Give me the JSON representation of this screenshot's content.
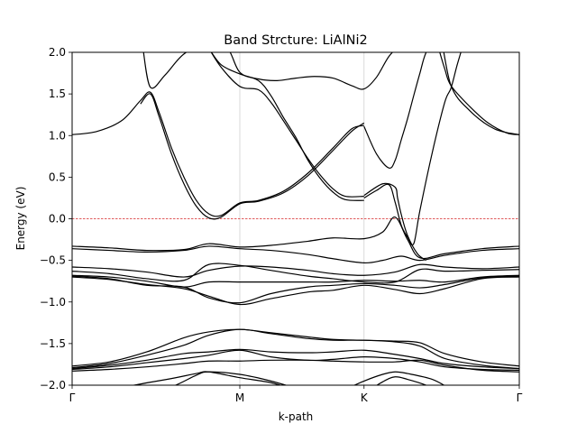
{
  "chart_data": {
    "type": "line",
    "title": "Band Strcture: LiAlNi2",
    "xlabel": "k-path",
    "ylabel": "Energy (eV)",
    "ylim": [
      -2.0,
      2.0
    ],
    "xlim": [
      0,
      3.6
    ],
    "y_ticks": [
      -2.0,
      -1.5,
      -1.0,
      -0.5,
      0.0,
      0.5,
      1.0,
      1.5,
      2.0
    ],
    "y_tick_labels": [
      "−2.0",
      "−1.5",
      "−1.0",
      "−0.5",
      "0.0",
      "0.5",
      "1.0",
      "1.5",
      "2.0"
    ],
    "k_points": [
      {
        "label": "Γ",
        "x": 0.0
      },
      {
        "label": "M",
        "x": 1.35
      },
      {
        "label": "K",
        "x": 2.35
      },
      {
        "label": "Γ",
        "x": 3.6
      }
    ],
    "vertical_gridlines_at": [
      1.35,
      2.35
    ],
    "fermi_level": {
      "energy": 0.0,
      "color": "#d62728",
      "style": "dashed"
    },
    "line_color": "#000000",
    "bands": [
      {
        "x": [
          0.0,
          0.2,
          0.4,
          0.55,
          0.63,
          0.7,
          0.8,
          0.9,
          1.0,
          1.1,
          1.2,
          1.35,
          1.5,
          1.7,
          1.9,
          2.1,
          2.25,
          2.35
        ],
        "y": [
          1.01,
          1.05,
          1.18,
          1.42,
          1.52,
          1.28,
          0.85,
          0.5,
          0.22,
          0.06,
          0.04,
          0.19,
          0.22,
          0.33,
          0.55,
          0.85,
          1.08,
          1.12
        ]
      },
      {
        "x": [
          0.55,
          0.63,
          0.7,
          0.8,
          0.9,
          1.0,
          1.1,
          1.2,
          1.35,
          1.5,
          1.7,
          1.9,
          2.1,
          2.25,
          2.35
        ],
        "y": [
          1.38,
          1.5,
          1.23,
          0.78,
          0.42,
          0.15,
          0.01,
          0.02,
          0.18,
          0.21,
          0.31,
          0.52,
          0.82,
          1.05,
          1.15
        ]
      },
      {
        "x": [
          0.57,
          0.63,
          0.75,
          0.9,
          1.1,
          1.25,
          1.35,
          1.5,
          1.65,
          1.8,
          1.95,
          2.1,
          2.25,
          2.35,
          2.45,
          2.55,
          2.65,
          2.75,
          2.9
        ],
        "y": [
          2.05,
          1.58,
          1.73,
          1.98,
          2.12,
          2.05,
          1.76,
          1.68,
          1.66,
          1.69,
          1.71,
          1.69,
          1.6,
          1.56,
          1.7,
          1.95,
          2.1,
          2.2,
          2.25
        ]
      },
      {
        "x": [
          1.1,
          1.2,
          1.35,
          1.5,
          1.6,
          1.7,
          1.8,
          1.9,
          2.0,
          2.1,
          2.2,
          2.35
        ],
        "y": [
          2.05,
          1.82,
          1.59,
          1.55,
          1.4,
          1.18,
          0.95,
          0.72,
          0.52,
          0.36,
          0.27,
          0.27
        ]
      },
      {
        "x": [
          1.1,
          1.2,
          1.35,
          1.5,
          1.6,
          1.7,
          1.8,
          1.9,
          2.0,
          2.1,
          2.2,
          2.35
        ],
        "y": [
          2.05,
          1.85,
          1.74,
          1.66,
          1.48,
          1.22,
          0.98,
          0.7,
          0.48,
          0.32,
          0.23,
          0.22
        ]
      },
      {
        "x": [
          2.35,
          2.45,
          2.55,
          2.6,
          2.65,
          2.7,
          2.75,
          2.8,
          2.85,
          2.95,
          3.05,
          3.2,
          3.4,
          3.6
        ],
        "y": [
          1.11,
          0.78,
          0.61,
          0.7,
          0.95,
          1.2,
          1.48,
          1.75,
          2.0,
          2.25,
          1.6,
          1.3,
          1.08,
          1.01
        ]
      },
      {
        "x": [
          2.95,
          3.0,
          3.05,
          3.2,
          3.35,
          3.5,
          3.6
        ],
        "y": [
          2.05,
          1.8,
          1.6,
          1.35,
          1.15,
          1.03,
          1.01
        ]
      },
      {
        "x": [
          2.35,
          2.45,
          2.55,
          2.6,
          2.65,
          2.7,
          2.75,
          2.8,
          2.9,
          3.0,
          3.05,
          3.1,
          3.15
        ],
        "y": [
          0.25,
          0.34,
          0.41,
          0.2,
          -0.08,
          -0.22,
          -0.3,
          0.1,
          0.8,
          1.4,
          1.57,
          1.85,
          2.1
        ]
      },
      {
        "x": [
          2.35,
          2.5,
          2.6,
          2.62,
          2.65,
          2.7,
          2.78,
          2.85
        ],
        "y": [
          0.28,
          0.42,
          0.38,
          0.25,
          0.05,
          -0.2,
          -0.42,
          -0.5
        ]
      },
      {
        "x": [
          0.0,
          0.3,
          0.6,
          0.9,
          1.1,
          1.35,
          1.6,
          1.9,
          2.1,
          2.35,
          2.5,
          2.6,
          2.7,
          2.8,
          3.0,
          3.3,
          3.6
        ],
        "y": [
          -0.33,
          -0.35,
          -0.38,
          -0.37,
          -0.3,
          -0.34,
          -0.32,
          -0.27,
          -0.23,
          -0.24,
          -0.16,
          0.02,
          -0.25,
          -0.47,
          -0.42,
          -0.36,
          -0.33
        ]
      },
      {
        "x": [
          0.0,
          0.3,
          0.6,
          0.9,
          1.1,
          1.35,
          1.6,
          1.9,
          2.1,
          2.35,
          2.5,
          2.65,
          2.8,
          3.0,
          3.3,
          3.6
        ],
        "y": [
          -0.36,
          -0.38,
          -0.4,
          -0.38,
          -0.33,
          -0.36,
          -0.38,
          -0.43,
          -0.48,
          -0.53,
          -0.5,
          -0.45,
          -0.5,
          -0.44,
          -0.38,
          -0.36
        ]
      },
      {
        "x": [
          0.0,
          0.3,
          0.6,
          0.9,
          1.1,
          1.35,
          1.6,
          1.9,
          2.1,
          2.35,
          2.6,
          2.8,
          3.0,
          3.3,
          3.6
        ],
        "y": [
          -0.58,
          -0.6,
          -0.64,
          -0.7,
          -0.62,
          -0.57,
          -0.58,
          -0.62,
          -0.66,
          -0.68,
          -0.64,
          -0.55,
          -0.58,
          -0.6,
          -0.58
        ]
      },
      {
        "x": [
          0.0,
          0.3,
          0.6,
          0.9,
          1.1,
          1.35,
          1.6,
          1.9,
          2.1,
          2.35,
          2.6,
          2.8,
          3.0,
          3.3,
          3.6
        ],
        "y": [
          -0.63,
          -0.66,
          -0.72,
          -0.74,
          -0.55,
          -0.56,
          -0.62,
          -0.69,
          -0.72,
          -0.76,
          -0.76,
          -0.61,
          -0.63,
          -0.62,
          -0.61
        ]
      },
      {
        "x": [
          0.0,
          0.3,
          0.6,
          0.9,
          1.1,
          1.35,
          1.6,
          1.9,
          2.1,
          2.35,
          2.6,
          2.8,
          3.0,
          3.3,
          3.6
        ],
        "y": [
          -0.68,
          -0.7,
          -0.75,
          -0.82,
          -0.76,
          -0.76,
          -0.76,
          -0.76,
          -0.76,
          -0.74,
          -0.75,
          -0.74,
          -0.76,
          -0.7,
          -0.68
        ]
      },
      {
        "x": [
          0.0,
          0.3,
          0.6,
          0.9,
          1.1,
          1.35,
          1.6,
          1.9,
          2.1,
          2.35,
          2.6,
          2.8,
          3.0,
          3.3,
          3.6
        ],
        "y": [
          -0.7,
          -0.73,
          -0.79,
          -0.84,
          -0.93,
          -1.03,
          -0.96,
          -0.88,
          -0.86,
          -0.8,
          -0.85,
          -0.9,
          -0.84,
          -0.72,
          -0.7
        ]
      },
      {
        "x": [
          0.0,
          0.3,
          0.6,
          0.9,
          1.1,
          1.35,
          1.6,
          1.9,
          2.1,
          2.35,
          2.6,
          2.8,
          3.0,
          3.3,
          3.6
        ],
        "y": [
          -0.69,
          -0.72,
          -0.8,
          -0.82,
          -0.95,
          -1.01,
          -0.9,
          -0.82,
          -0.8,
          -0.78,
          -0.8,
          -0.83,
          -0.79,
          -0.71,
          -0.69
        ]
      },
      {
        "x": [
          0.0,
          0.3,
          0.6,
          0.9,
          1.1,
          1.35,
          1.6,
          1.9,
          2.1,
          2.35,
          2.6,
          2.8,
          3.0,
          3.3,
          3.6
        ],
        "y": [
          -1.77,
          -1.72,
          -1.6,
          -1.43,
          -1.36,
          -1.33,
          -1.37,
          -1.42,
          -1.45,
          -1.46,
          -1.47,
          -1.49,
          -1.62,
          -1.72,
          -1.77
        ]
      },
      {
        "x": [
          0.0,
          0.3,
          0.6,
          0.9,
          1.1,
          1.35,
          1.6,
          1.9,
          2.1,
          2.35,
          2.6,
          2.8,
          3.0,
          3.3,
          3.6
        ],
        "y": [
          -1.79,
          -1.74,
          -1.64,
          -1.52,
          -1.4,
          -1.33,
          -1.38,
          -1.44,
          -1.46,
          -1.46,
          -1.48,
          -1.53,
          -1.68,
          -1.76,
          -1.8
        ]
      },
      {
        "x": [
          0.0,
          0.3,
          0.6,
          0.9,
          1.1,
          1.35,
          1.6,
          1.9,
          2.1,
          2.35,
          2.6,
          2.8,
          3.0,
          3.3,
          3.6
        ],
        "y": [
          -1.8,
          -1.76,
          -1.7,
          -1.62,
          -1.6,
          -1.57,
          -1.6,
          -1.61,
          -1.6,
          -1.58,
          -1.63,
          -1.68,
          -1.74,
          -1.78,
          -1.8
        ]
      },
      {
        "x": [
          0.0,
          0.3,
          0.6,
          0.9,
          1.1,
          1.35,
          1.6,
          1.9,
          2.1,
          2.35,
          2.6,
          2.8,
          3.0,
          3.3,
          3.6
        ],
        "y": [
          -1.81,
          -1.78,
          -1.73,
          -1.68,
          -1.64,
          -1.58,
          -1.66,
          -1.7,
          -1.69,
          -1.66,
          -1.68,
          -1.72,
          -1.78,
          -1.81,
          -1.82
        ]
      },
      {
        "x": [
          0.0,
          0.3,
          0.6,
          0.9,
          1.1,
          1.35,
          1.6,
          1.9,
          2.1,
          2.35,
          2.6,
          2.8,
          3.0,
          3.3,
          3.6
        ],
        "y": [
          -1.83,
          -1.81,
          -1.78,
          -1.74,
          -1.71,
          -1.71,
          -1.7,
          -1.7,
          -1.71,
          -1.72,
          -1.72,
          -1.7,
          -1.76,
          -1.82,
          -1.84
        ]
      },
      {
        "x": [
          0.2,
          0.5,
          0.8,
          1.0,
          1.1,
          1.35,
          1.6,
          1.8
        ],
        "y": [
          -2.1,
          -2.0,
          -1.92,
          -1.86,
          -1.84,
          -1.91,
          -1.97,
          -2.06
        ]
      },
      {
        "x": [
          0.5,
          0.8,
          1.0,
          1.1,
          1.35,
          1.6,
          1.9
        ],
        "y": [
          -2.15,
          -2.02,
          -1.88,
          -1.84,
          -1.87,
          -1.95,
          -2.08
        ]
      },
      {
        "x": [
          2.2,
          2.35,
          2.5,
          2.6,
          2.7,
          2.9,
          3.05
        ],
        "y": [
          -2.05,
          -1.95,
          -1.87,
          -1.84,
          -1.86,
          -1.93,
          -2.05
        ]
      },
      {
        "x": [
          2.35,
          2.5,
          2.6,
          2.7,
          2.85,
          3.0
        ],
        "y": [
          -2.1,
          -1.96,
          -1.9,
          -1.93,
          -2.0,
          -2.1
        ]
      }
    ]
  }
}
